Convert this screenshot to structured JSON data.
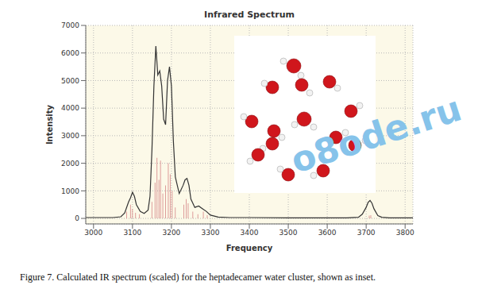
{
  "chart_data": {
    "type": "line",
    "title": "Infrared Spectrum",
    "xlabel": "Frequency",
    "ylabel": "Intensity",
    "xlim": [
      2980,
      3820
    ],
    "xticks": [
      3000,
      3100,
      3200,
      3300,
      3400,
      3500,
      3600,
      3700,
      3800
    ],
    "ylim": [
      -200,
      7000
    ],
    "yticks": [
      0,
      1000,
      2000,
      3000,
      4000,
      5000,
      6000,
      7000
    ],
    "grid": true,
    "series": [
      {
        "type": "line",
        "color": "#333333",
        "x": [
          2980,
          3000,
          3050,
          3070,
          3080,
          3090,
          3095,
          3100,
          3105,
          3110,
          3120,
          3130,
          3140,
          3145,
          3150,
          3155,
          3160,
          3165,
          3170,
          3175,
          3180,
          3185,
          3190,
          3195,
          3200,
          3205,
          3210,
          3220,
          3230,
          3235,
          3240,
          3245,
          3250,
          3260,
          3270,
          3280,
          3290,
          3300,
          3320,
          3350,
          3400,
          3500,
          3600,
          3650,
          3680,
          3690,
          3700,
          3705,
          3710,
          3715,
          3720,
          3730,
          3740,
          3760,
          3800,
          3820
        ],
        "values": [
          30,
          30,
          30,
          60,
          200,
          600,
          750,
          950,
          800,
          500,
          250,
          180,
          300,
          800,
          2500,
          4800,
          6250,
          5200,
          5350,
          4800,
          3600,
          3400,
          5000,
          5500,
          4800,
          2800,
          1500,
          900,
          1200,
          1400,
          1450,
          1200,
          700,
          400,
          450,
          350,
          250,
          120,
          50,
          30,
          30,
          20,
          20,
          20,
          40,
          150,
          400,
          580,
          650,
          550,
          350,
          100,
          40,
          20,
          20,
          20
        ]
      },
      {
        "type": "bar",
        "color": "#d98f8f",
        "x": [
          3085,
          3095,
          3100,
          3108,
          3118,
          3150,
          3158,
          3163,
          3168,
          3172,
          3178,
          3185,
          3192,
          3197,
          3202,
          3210,
          3232,
          3238,
          3243,
          3255,
          3268,
          3282,
          3292,
          3708,
          3712
        ],
        "values": [
          250,
          500,
          350,
          200,
          150,
          600,
          1300,
          2200,
          1400,
          2100,
          900,
          1200,
          2000,
          1600,
          1000,
          400,
          500,
          700,
          550,
          250,
          150,
          250,
          120,
          100,
          120
        ]
      }
    ],
    "annotations": [
      "o8ode.ru"
    ],
    "caption": "Figure 7.  Calculated IR spectrum (scaled) for the heptadecamer water cluster, shown as inset."
  }
}
